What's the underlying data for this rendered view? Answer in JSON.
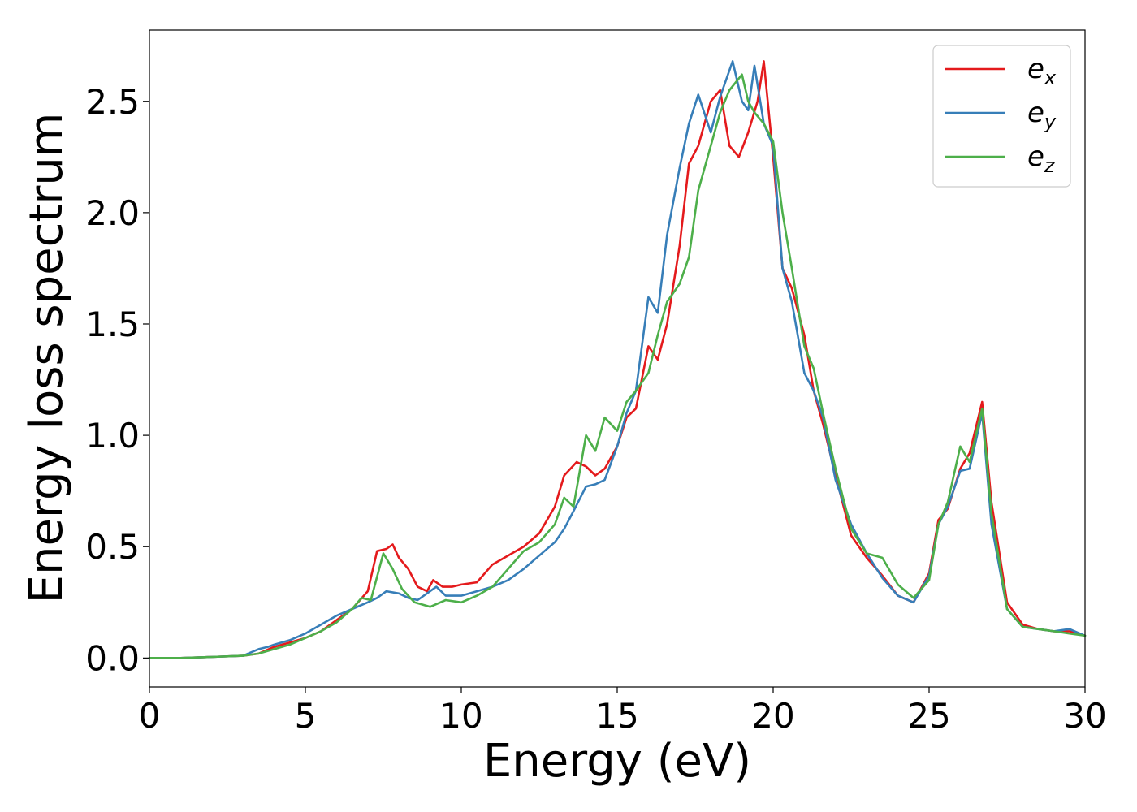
{
  "chart_data": {
    "type": "line",
    "title": "",
    "xlabel": "Energy (eV)",
    "ylabel": "Energy loss spectrum",
    "xlim": [
      0,
      30
    ],
    "ylim": [
      -0.13,
      2.82
    ],
    "xticks": [
      0,
      5,
      10,
      15,
      20,
      25,
      30
    ],
    "xtick_labels": [
      "0",
      "5",
      "10",
      "15",
      "20",
      "25",
      "30"
    ],
    "yticks": [
      0.0,
      0.5,
      1.0,
      1.5,
      2.0,
      2.5
    ],
    "ytick_labels": [
      "0.0",
      "0.5",
      "1.0",
      "1.5",
      "2.0",
      "2.5"
    ],
    "grid": false,
    "legend_position": "top-right",
    "series": [
      {
        "name": "e_x",
        "label_main": "e",
        "label_sub": "x",
        "color": "#e41a1c",
        "x": [
          0,
          1,
          2,
          3,
          3.5,
          4,
          4.5,
          5,
          5.5,
          6,
          6.5,
          7,
          7.3,
          7.6,
          7.8,
          8,
          8.3,
          8.6,
          8.9,
          9.1,
          9.4,
          9.7,
          10,
          10.5,
          11,
          11.5,
          12,
          12.5,
          13,
          13.3,
          13.7,
          14,
          14.3,
          14.6,
          15,
          15.3,
          15.6,
          16,
          16.3,
          16.6,
          17,
          17.3,
          17.6,
          18,
          18.3,
          18.6,
          18.9,
          19.2,
          19.5,
          19.7,
          20,
          20.3,
          20.6,
          21,
          21.3,
          21.6,
          22,
          22.5,
          23,
          23.5,
          24,
          24.5,
          25,
          25.3,
          25.6,
          26,
          26.3,
          26.7,
          27,
          27.5,
          28,
          28.5,
          29,
          29.5,
          30
        ],
        "y": [
          0,
          0,
          0.005,
          0.01,
          0.02,
          0.05,
          0.07,
          0.09,
          0.12,
          0.17,
          0.22,
          0.3,
          0.48,
          0.49,
          0.51,
          0.45,
          0.4,
          0.32,
          0.3,
          0.35,
          0.32,
          0.32,
          0.33,
          0.34,
          0.42,
          0.46,
          0.5,
          0.56,
          0.68,
          0.82,
          0.88,
          0.86,
          0.82,
          0.85,
          0.95,
          1.08,
          1.12,
          1.4,
          1.34,
          1.5,
          1.85,
          2.22,
          2.3,
          2.5,
          2.55,
          2.3,
          2.25,
          2.36,
          2.5,
          2.68,
          2.25,
          1.75,
          1.66,
          1.45,
          1.2,
          1.05,
          0.82,
          0.55,
          0.45,
          0.37,
          0.28,
          0.25,
          0.38,
          0.62,
          0.67,
          0.85,
          0.92,
          1.15,
          0.7,
          0.25,
          0.15,
          0.13,
          0.12,
          0.12,
          0.1
        ]
      },
      {
        "name": "e_y",
        "label_main": "e",
        "label_sub": "y",
        "color": "#377eb8",
        "x": [
          0,
          1,
          2,
          3,
          3.5,
          3.8,
          4,
          4.5,
          5,
          5.5,
          6,
          6.5,
          7,
          7.3,
          7.6,
          8,
          8.3,
          8.6,
          9,
          9.2,
          9.5,
          10,
          10.5,
          11,
          11.5,
          12,
          12.5,
          13,
          13.3,
          13.6,
          14,
          14.3,
          14.6,
          15,
          15.3,
          15.6,
          16,
          16.3,
          16.6,
          17,
          17.3,
          17.6,
          18,
          18.3,
          18.7,
          19,
          19.2,
          19.4,
          19.7,
          20,
          20.3,
          20.6,
          21,
          21.3,
          21.6,
          22,
          22.5,
          23,
          23.5,
          24,
          24.5,
          25,
          25.3,
          25.6,
          26,
          26.3,
          26.7,
          27,
          27.5,
          28,
          28.5,
          29,
          29.5,
          30
        ],
        "y": [
          0,
          0,
          0.005,
          0.01,
          0.04,
          0.05,
          0.06,
          0.08,
          0.11,
          0.15,
          0.19,
          0.22,
          0.25,
          0.27,
          0.3,
          0.29,
          0.27,
          0.26,
          0.3,
          0.32,
          0.28,
          0.28,
          0.3,
          0.32,
          0.35,
          0.4,
          0.46,
          0.52,
          0.58,
          0.66,
          0.77,
          0.78,
          0.8,
          0.95,
          1.1,
          1.2,
          1.62,
          1.55,
          1.9,
          2.2,
          2.4,
          2.53,
          2.36,
          2.52,
          2.68,
          2.5,
          2.46,
          2.66,
          2.4,
          2.3,
          1.75,
          1.6,
          1.28,
          1.2,
          1.08,
          0.8,
          0.6,
          0.47,
          0.36,
          0.28,
          0.25,
          0.37,
          0.6,
          0.68,
          0.84,
          0.85,
          1.1,
          0.6,
          0.22,
          0.14,
          0.13,
          0.12,
          0.13,
          0.1
        ]
      },
      {
        "name": "e_z",
        "label_main": "e",
        "label_sub": "z",
        "color": "#4daf4a",
        "x": [
          0,
          1,
          2,
          3,
          3.5,
          4,
          4.5,
          5,
          5.5,
          6,
          6.5,
          6.8,
          7.1,
          7.5,
          7.8,
          8.1,
          8.5,
          9,
          9.5,
          10,
          10.5,
          11,
          11.5,
          12,
          12.5,
          13,
          13.3,
          13.6,
          14,
          14.3,
          14.6,
          15,
          15.3,
          15.6,
          16,
          16.3,
          16.6,
          17,
          17.3,
          17.6,
          18,
          18.3,
          18.6,
          19,
          19.2,
          19.4,
          19.7,
          20,
          20.3,
          20.6,
          21,
          21.3,
          21.6,
          22,
          22.5,
          23,
          23.5,
          24,
          24.5,
          25,
          25.3,
          25.6,
          26,
          26.3,
          26.7,
          27,
          27.5,
          28,
          28.5,
          29,
          29.5,
          30
        ],
        "y": [
          0,
          0,
          0.005,
          0.01,
          0.02,
          0.04,
          0.06,
          0.09,
          0.12,
          0.16,
          0.22,
          0.27,
          0.26,
          0.47,
          0.4,
          0.31,
          0.25,
          0.23,
          0.26,
          0.25,
          0.28,
          0.32,
          0.4,
          0.48,
          0.52,
          0.6,
          0.72,
          0.68,
          1.0,
          0.93,
          1.08,
          1.02,
          1.15,
          1.2,
          1.28,
          1.45,
          1.6,
          1.68,
          1.8,
          2.1,
          2.3,
          2.45,
          2.55,
          2.62,
          2.5,
          2.45,
          2.4,
          2.32,
          2.0,
          1.75,
          1.4,
          1.3,
          1.1,
          0.85,
          0.58,
          0.47,
          0.45,
          0.33,
          0.27,
          0.35,
          0.6,
          0.7,
          0.95,
          0.88,
          1.12,
          0.65,
          0.22,
          0.14,
          0.13,
          0.12,
          0.11,
          0.1
        ]
      }
    ]
  }
}
